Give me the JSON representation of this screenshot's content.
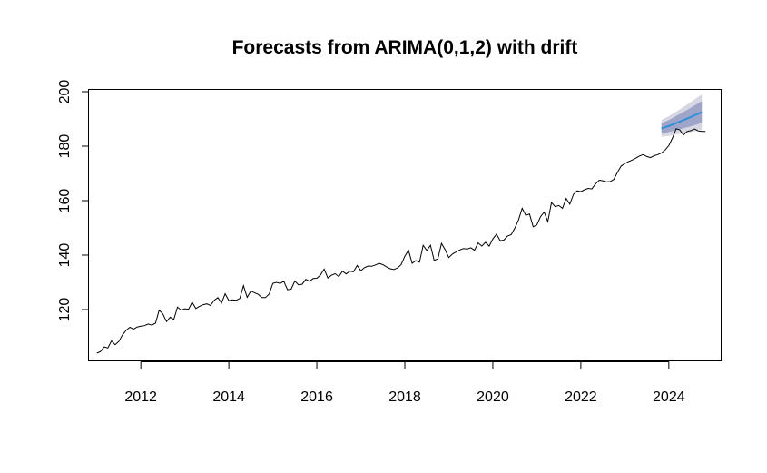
{
  "chart_data": {
    "type": "line",
    "title": "Forecasts from ARIMA(0,1,2) with drift",
    "xlabel": "",
    "ylabel": "",
    "xlim": [
      2010.8,
      2025.2
    ],
    "ylim": [
      101,
      201
    ],
    "x_ticks": [
      2012,
      2014,
      2016,
      2018,
      2020,
      2022,
      2024
    ],
    "y_ticks": [
      120,
      140,
      160,
      180,
      200
    ],
    "grid": false,
    "legend": "none",
    "colors": {
      "history": "#000000",
      "forecast_mean": "#2f8fd6",
      "band_80": "#9fa4c9",
      "band_95": "#d6d7e3"
    },
    "history": {
      "start": 2011.0,
      "frequency": 12,
      "values": [
        104.0,
        104.6,
        106.3,
        105.9,
        108.5,
        107.1,
        108.3,
        110.7,
        112.4,
        113.5,
        112.8,
        113.6,
        113.9,
        114.1,
        114.7,
        114.3,
        115.0,
        119.8,
        118.4,
        115.6,
        117.2,
        116.4,
        120.9,
        119.8,
        120.3,
        120.1,
        122.7,
        120.4,
        121.2,
        121.8,
        122.1,
        121.5,
        123.4,
        124.4,
        122.4,
        125.8,
        123.3,
        123.6,
        123.4,
        124.1,
        128.8,
        124.5,
        126.8,
        126.2,
        125.6,
        124.4,
        124.4,
        125.7,
        129.6,
        130.0,
        129.6,
        130.4,
        127.3,
        127.5,
        130.5,
        129.1,
        129.3,
        131.1,
        130.4,
        131.4,
        131.5,
        132.7,
        134.9,
        131.6,
        132.6,
        133.2,
        132.1,
        134.1,
        133.1,
        134.1,
        133.9,
        136.2,
        134.3,
        135.4,
        136.0,
        135.9,
        136.4,
        137.0,
        136.5,
        135.7,
        135.0,
        134.7,
        135.3,
        136.5,
        139.6,
        141.8,
        137.0,
        138.0,
        137.4,
        143.6,
        141.7,
        143.6,
        138.1,
        138.6,
        144.3,
        142.0,
        139.1,
        140.4,
        141.2,
        141.9,
        142.4,
        142.2,
        142.7,
        141.8,
        144.5,
        143.3,
        144.7,
        143.3,
        145.9,
        147.7,
        145.3,
        145.5,
        147.0,
        147.5,
        149.9,
        152.9,
        157.2,
        154.6,
        155.1,
        150.4,
        151.1,
        154.1,
        155.8,
        152.3,
        159.3,
        157.8,
        158.2,
        157.2,
        160.8,
        158.7,
        162.3,
        163.6,
        163.3,
        164.0,
        164.5,
        164.3,
        166.1,
        167.5,
        167.3,
        166.9,
        167.0,
        167.8,
        170.4,
        172.7,
        173.6,
        174.3,
        174.9,
        175.6,
        176.4,
        176.9,
        176.2,
        175.8,
        176.5,
        176.9,
        177.5,
        178.6,
        180.2,
        183.0,
        186.4,
        186.0,
        184.1,
        185.4,
        185.7,
        186.3,
        185.6,
        185.4,
        185.4
      ]
    },
    "forecast": {
      "x": [
        2023.833,
        2024.0,
        2024.25,
        2024.5,
        2024.75
      ],
      "mean": [
        186.5,
        187.4,
        189.0,
        190.7,
        192.5
      ],
      "lo80": [
        184.6,
        185.2,
        186.2,
        187.3,
        188.5
      ],
      "hi80": [
        188.4,
        189.6,
        191.8,
        194.1,
        196.5
      ],
      "lo95": [
        183.4,
        183.8,
        184.5,
        185.2,
        186.0
      ],
      "hi95": [
        189.6,
        191.0,
        193.5,
        196.2,
        199.0
      ]
    }
  }
}
